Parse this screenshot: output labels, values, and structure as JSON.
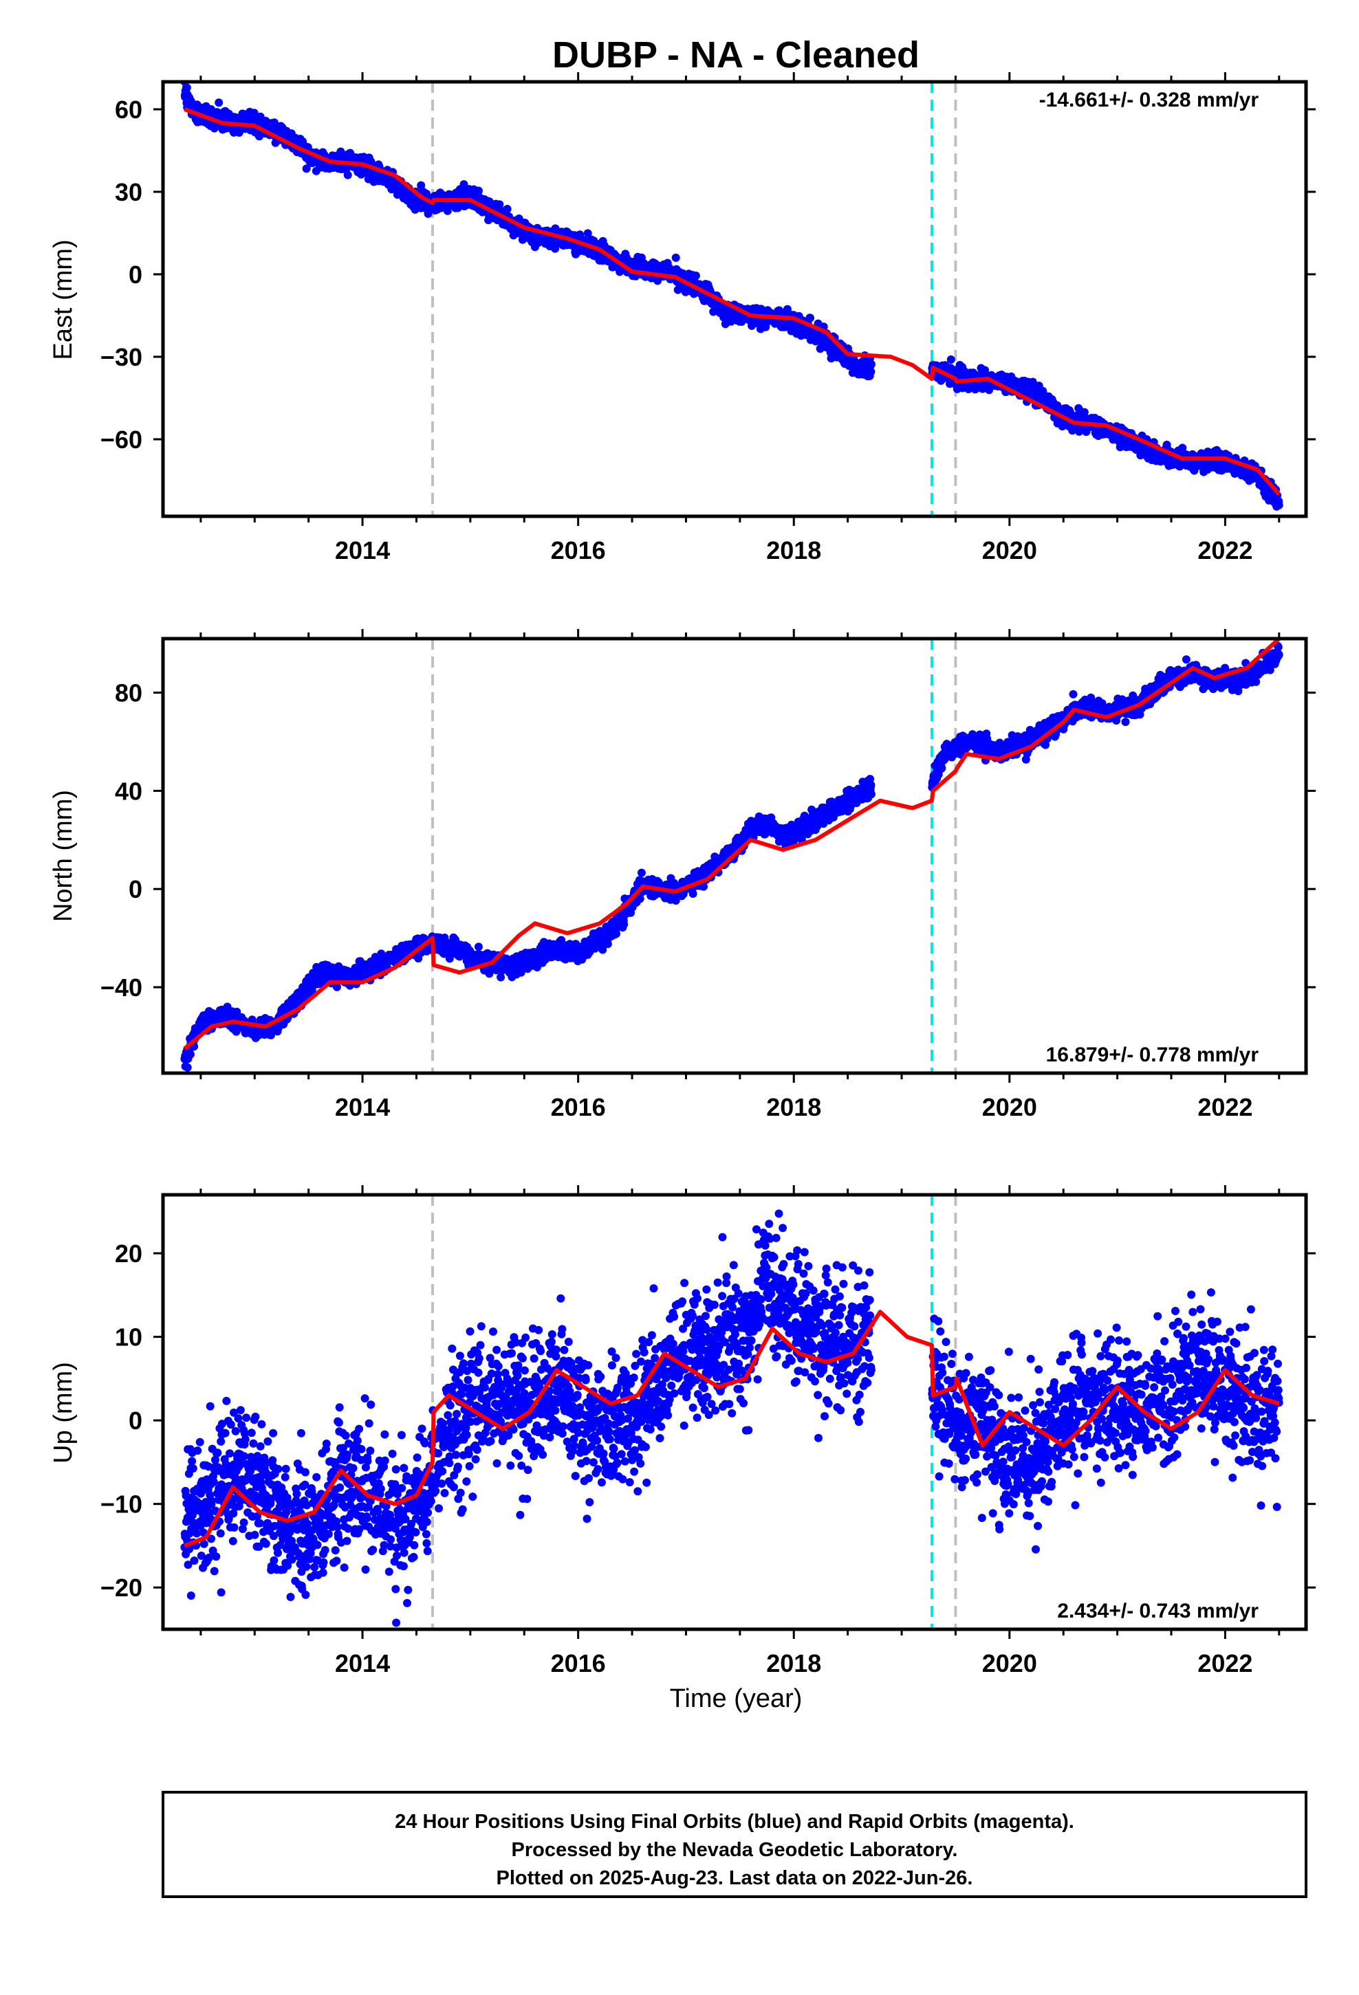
{
  "title": "DUBP  - NA - Cleaned",
  "footer": {
    "line1": "24 Hour Positions Using Final Orbits (blue) and Rapid Orbits (magenta).",
    "line2": "Processed by the Nevada Geodetic Laboratory.",
    "line3": "Plotted on 2025-Aug-23. Last data on 2022-Jun-26."
  },
  "colors": {
    "data_points": "#0000ff",
    "model_fit": "#ff0000",
    "equipment_change": "#c0c0c0",
    "earthquake": "#00e5ee",
    "frame": "#000000"
  },
  "chart_data": [
    {
      "type": "scatter",
      "component": "east",
      "ylabel": "East (mm)",
      "xlabel": "",
      "rate_label": "-14.661+/- 0.328 mm/yr",
      "rate_position": "top-right",
      "xlim": [
        2012.15,
        2022.75
      ],
      "ylim": [
        -88,
        70
      ],
      "x_ticks": [
        2014,
        2016,
        2018,
        2020,
        2022
      ],
      "y_ticks": [
        60,
        30,
        0,
        -30,
        -60
      ],
      "y_tick_labels": [
        "60",
        "30",
        "0",
        "−30",
        "−60"
      ],
      "equipment_changes": [
        2014.65,
        2019.5
      ],
      "earthquakes": [
        2019.28
      ],
      "grid": false,
      "series": [
        {
          "kind": "daily_positions",
          "noise": 1.6,
          "gaps": [
            [
              2018.72,
              2019.28
            ]
          ],
          "x": [
            2012.35,
            2012.45,
            2012.7,
            2013.0,
            2013.3,
            2013.6,
            2013.9,
            2014.2,
            2014.5,
            2014.75,
            2015.0,
            2015.3,
            2015.6,
            2015.9,
            2016.2,
            2016.5,
            2016.8,
            2017.1,
            2017.4,
            2017.7,
            2018.0,
            2018.3,
            2018.6,
            2018.72,
            2019.28,
            2019.6,
            2019.9,
            2020.2,
            2020.5,
            2020.8,
            2021.1,
            2021.4,
            2021.7,
            2022.0,
            2022.3,
            2022.5
          ],
          "y": [
            66,
            59,
            56,
            55,
            50,
            41,
            41,
            36,
            27,
            26,
            28,
            21,
            14,
            13,
            8,
            2,
            1,
            -4,
            -14,
            -15,
            -17,
            -24,
            -34,
            -35,
            -35,
            -38,
            -39,
            -42,
            -52,
            -55,
            -60,
            -66,
            -68,
            -68,
            -73,
            -83
          ]
        },
        {
          "kind": "model_fit",
          "x": [
            2012.35,
            2012.7,
            2013.0,
            2013.4,
            2013.7,
            2014.0,
            2014.3,
            2014.55,
            2014.65,
            2014.66,
            2015.0,
            2015.5,
            2015.9,
            2016.2,
            2016.5,
            2016.9,
            2017.2,
            2017.6,
            2018.0,
            2018.3,
            2018.5,
            2018.9,
            2019.1,
            2019.28,
            2019.29,
            2019.5,
            2019.51,
            2019.8,
            2020.2,
            2020.6,
            2020.9,
            2021.2,
            2021.6,
            2022.0,
            2022.3,
            2022.5
          ],
          "y": [
            60,
            55,
            54,
            46,
            41,
            40,
            36,
            28,
            26,
            27,
            27,
            17,
            13,
            9,
            1,
            -1,
            -7,
            -15,
            -16,
            -21,
            -29,
            -30,
            -33,
            -38,
            -34,
            -38,
            -39,
            -38,
            -46,
            -54,
            -55,
            -60,
            -67,
            -67,
            -71,
            -80
          ]
        }
      ]
    },
    {
      "type": "scatter",
      "component": "north",
      "ylabel": "North (mm)",
      "xlabel": "",
      "rate_label": "16.879+/- 0.778 mm/yr",
      "rate_position": "bottom-right",
      "xlim": [
        2012.15,
        2022.75
      ],
      "ylim": [
        -75,
        102
      ],
      "x_ticks": [
        2014,
        2016,
        2018,
        2020,
        2022
      ],
      "y_ticks": [
        80,
        40,
        0,
        -40
      ],
      "y_tick_labels": [
        "80",
        "40",
        "0",
        "−40"
      ],
      "equipment_changes": [
        2014.65,
        2019.5
      ],
      "earthquakes": [
        2019.28
      ],
      "grid": false,
      "series": [
        {
          "kind": "daily_positions",
          "noise": 1.8,
          "gaps": [
            [
              2018.72,
              2019.28
            ]
          ],
          "x": [
            2012.35,
            2012.5,
            2012.7,
            2013.0,
            2013.2,
            2013.4,
            2013.6,
            2013.9,
            2014.2,
            2014.5,
            2014.65,
            2014.9,
            2015.2,
            2015.4,
            2015.7,
            2016.0,
            2016.3,
            2016.5,
            2016.6,
            2016.9,
            2017.2,
            2017.5,
            2017.6,
            2017.8,
            2017.9,
            2018.2,
            2018.5,
            2018.7,
            2019.28,
            2019.4,
            2019.6,
            2019.9,
            2020.2,
            2020.5,
            2020.6,
            2020.9,
            2021.2,
            2021.5,
            2021.7,
            2021.9,
            2022.2,
            2022.5
          ],
          "y": [
            -70,
            -55,
            -52,
            -57,
            -55,
            -45,
            -34,
            -36,
            -30,
            -24,
            -22,
            -25,
            -30,
            -32,
            -25,
            -26,
            -18,
            -5,
            2,
            -2,
            6,
            18,
            25,
            26,
            21,
            28,
            36,
            41,
            42,
            55,
            60,
            56,
            60,
            68,
            74,
            72,
            75,
            86,
            88,
            85,
            86,
            96
          ]
        },
        {
          "kind": "model_fit",
          "x": [
            2012.35,
            2012.6,
            2012.8,
            2013.1,
            2013.4,
            2013.7,
            2014.0,
            2014.3,
            2014.65,
            2014.66,
            2014.9,
            2015.2,
            2015.45,
            2015.6,
            2015.9,
            2016.2,
            2016.45,
            2016.6,
            2016.9,
            2017.2,
            2017.45,
            2017.6,
            2017.9,
            2018.2,
            2018.5,
            2018.8,
            2019.1,
            2019.28,
            2019.29,
            2019.5,
            2019.51,
            2019.6,
            2019.9,
            2020.2,
            2020.5,
            2020.6,
            2020.9,
            2021.2,
            2021.5,
            2021.7,
            2021.9,
            2022.2,
            2022.5
          ],
          "y": [
            -65,
            -56,
            -54,
            -56,
            -49,
            -38,
            -38,
            -32,
            -20,
            -31,
            -34,
            -30,
            -19,
            -14,
            -18,
            -14,
            -6,
            1,
            -1,
            4,
            14,
            20,
            16,
            20,
            28,
            36,
            33,
            36,
            40,
            48,
            49,
            55,
            53,
            58,
            68,
            73,
            70,
            75,
            84,
            90,
            86,
            90,
            102
          ]
        }
      ]
    },
    {
      "type": "scatter",
      "component": "up",
      "ylabel": "Up (mm)",
      "xlabel": "Time (year)",
      "rate_label": "2.434+/- 0.743 mm/yr",
      "rate_position": "bottom-right",
      "xlim": [
        2012.15,
        2022.75
      ],
      "ylim": [
        -25,
        27
      ],
      "x_ticks": [
        2014,
        2016,
        2018,
        2020,
        2022
      ],
      "y_ticks": [
        20,
        10,
        0,
        -10,
        -20
      ],
      "y_tick_labels": [
        "20",
        "10",
        "0",
        "−10",
        "−20"
      ],
      "equipment_changes": [
        2014.65,
        2019.5
      ],
      "earthquakes": [
        2019.28
      ],
      "grid": false,
      "series": [
        {
          "kind": "daily_positions",
          "noise": 3.8,
          "gaps": [
            [
              2018.72,
              2019.28
            ]
          ],
          "x": [
            2012.35,
            2012.6,
            2012.85,
            2013.1,
            2013.35,
            2013.6,
            2013.85,
            2014.1,
            2014.4,
            2014.6,
            2014.75,
            2015.0,
            2015.3,
            2015.55,
            2015.8,
            2016.05,
            2016.3,
            2016.55,
            2016.8,
            2017.05,
            2017.3,
            2017.55,
            2017.75,
            2017.9,
            2018.2,
            2018.5,
            2018.7,
            2019.28,
            2019.4,
            2019.55,
            2019.8,
            2020.0,
            2020.2,
            2020.5,
            2020.8,
            2021.05,
            2021.3,
            2021.55,
            2021.8,
            2022.05,
            2022.3,
            2022.5
          ],
          "y": [
            -12,
            -8,
            -6,
            -9,
            -13,
            -12,
            -7,
            -10,
            -13,
            -8,
            -2,
            2,
            2,
            1,
            5,
            0,
            -2,
            2,
            6,
            8,
            8,
            10,
            16,
            14,
            10,
            9,
            9,
            5,
            2,
            -1,
            0,
            -5,
            -5,
            1,
            3,
            1,
            2,
            4,
            6,
            3,
            1,
            2
          ]
        },
        {
          "kind": "model_fit",
          "x": [
            2012.35,
            2012.55,
            2012.8,
            2013.05,
            2013.3,
            2013.55,
            2013.8,
            2014.05,
            2014.3,
            2014.5,
            2014.65,
            2014.66,
            2014.8,
            2015.05,
            2015.3,
            2015.55,
            2015.8,
            2016.05,
            2016.3,
            2016.55,
            2016.8,
            2017.05,
            2017.3,
            2017.55,
            2017.8,
            2018.05,
            2018.3,
            2018.55,
            2018.8,
            2019.05,
            2019.28,
            2019.29,
            2019.5,
            2019.51,
            2019.75,
            2020.0,
            2020.25,
            2020.5,
            2020.75,
            2021.0,
            2021.25,
            2021.5,
            2021.75,
            2022.0,
            2022.25,
            2022.5
          ],
          "y": [
            -15,
            -14,
            -8,
            -11,
            -12,
            -11,
            -6,
            -9,
            -10,
            -9,
            -5,
            1,
            3,
            1,
            -1,
            1,
            6,
            4,
            2,
            3,
            8,
            6,
            4,
            5,
            11,
            8,
            7,
            8,
            13,
            10,
            9,
            3,
            4,
            5,
            -3,
            1,
            -1,
            -3,
            0,
            4,
            1,
            -1,
            1,
            6,
            3,
            2
          ]
        }
      ]
    }
  ]
}
